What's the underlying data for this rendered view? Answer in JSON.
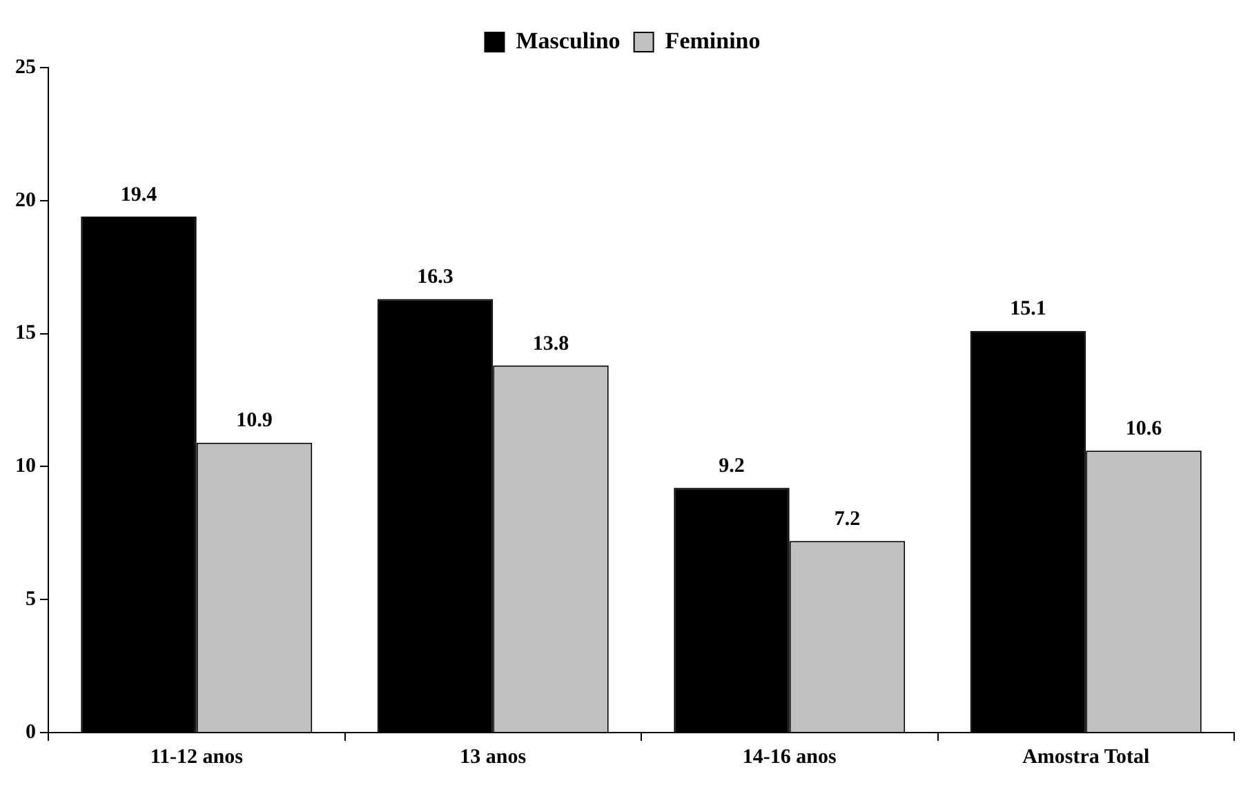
{
  "chart_data": {
    "type": "bar",
    "categories": [
      "11-12 anos",
      "13 anos",
      "14-16 anos",
      "Amostra Total"
    ],
    "series": [
      {
        "name": "Masculino",
        "color": "#000000",
        "values": [
          19.4,
          16.3,
          9.2,
          15.1
        ]
      },
      {
        "name": "Feminino",
        "color": "#c0c0c0",
        "values": [
          10.9,
          13.8,
          7.2,
          10.6
        ]
      }
    ],
    "ylim": [
      0,
      25
    ],
    "yticks": [
      0,
      5,
      10,
      15,
      20,
      25
    ],
    "grid": false,
    "legend": "top",
    "data_labels": true
  }
}
